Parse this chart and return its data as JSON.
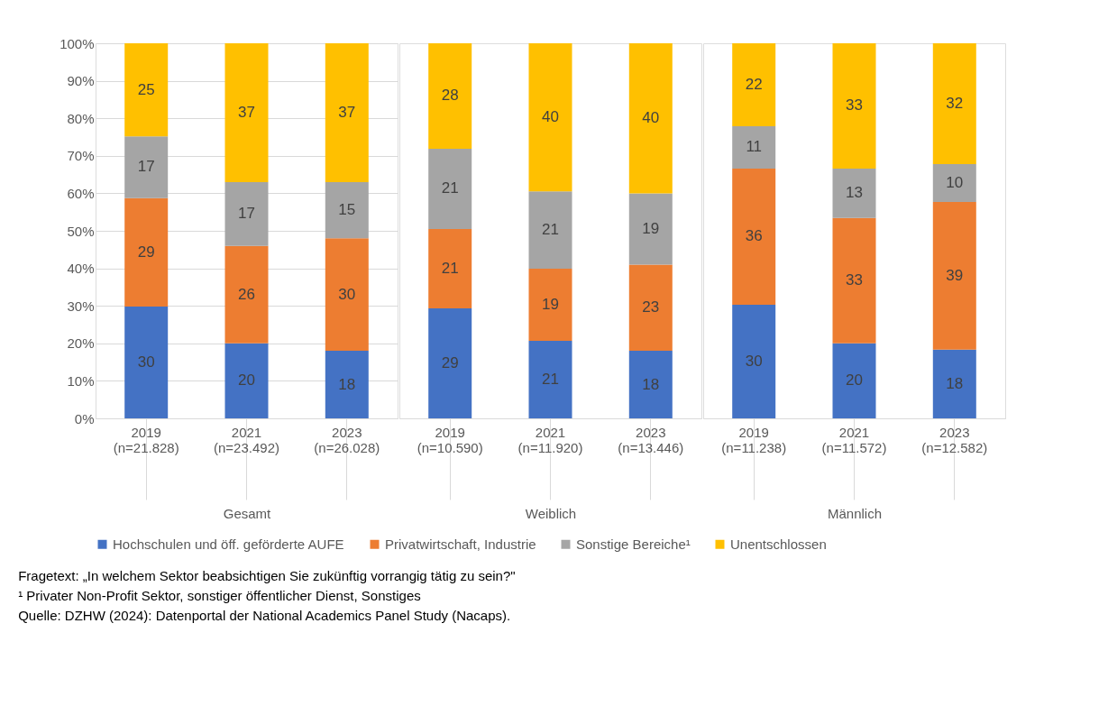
{
  "chart_data": [
    {
      "type": "bar",
      "stacked": true,
      "xlabel": "Gesamt",
      "categories": [
        "2019 (n=21.828)",
        "2021 (n=23.492)",
        "2023 (n=26.028)"
      ],
      "ylim": [
        0,
        100
      ],
      "yticks": [
        {
          "value": 0,
          "label": "0%"
        },
        {
          "value": 10,
          "label": "10%"
        },
        {
          "value": 20,
          "label": "20%"
        },
        {
          "value": 30,
          "label": "30%"
        },
        {
          "value": 40,
          "label": "40%"
        },
        {
          "value": 50,
          "label": "50%"
        },
        {
          "value": 60,
          "label": "60%"
        },
        {
          "value": 70,
          "label": "70%"
        },
        {
          "value": 80,
          "label": "80%"
        },
        {
          "value": 90,
          "label": "90%"
        },
        {
          "value": 100,
          "label": "100%"
        }
      ],
      "grid": "y",
      "legend": "bottom",
      "series": [
        {
          "name": "Hochschulen und öff. geförderte AUFE",
          "color": "#4472c4",
          "values": [
            29.8,
            20,
            18
          ],
          "value_labels": [
            "30",
            "20",
            "18"
          ]
        },
        {
          "name": "Privatwirtschaft, Industrie",
          "color": "#ed7d31",
          "values": [
            28.9,
            26,
            30
          ],
          "value_labels": [
            "29",
            "26",
            "30"
          ]
        },
        {
          "name": "Sonstige Bereiche¹",
          "color": "#a5a5a5",
          "values": [
            16.5,
            17,
            15
          ],
          "value_labels": [
            "17",
            "17",
            "15"
          ]
        },
        {
          "name": "Unentschlossen",
          "color": "#ffc000",
          "values": [
            24.8,
            37,
            37
          ],
          "value_labels": [
            "25",
            "37",
            "37"
          ]
        }
      ],
      "annotations": [
        "Fragetext: „In welchem Sektor beabsichtigen Sie zukünftig vorrangig tätig zu sein?\"",
        "¹ Privater Non-Profit Sektor, sonstiger öffentlicher Dienst, Sonstiges",
        "Quelle: DZHW (2024): Datenportal der National Academics Panel Study (Nacaps)."
      ]
    },
    {
      "type": "bar",
      "stacked": true,
      "xlabel": "Weiblich",
      "categories": [
        "2019 (n=10.590)",
        "2021 (n=11.920)",
        "2023 (n=13.446)"
      ],
      "ylim": [
        0,
        100
      ],
      "tick_labels": "x",
      "grid": "y",
      "series": [
        {
          "name": "Hochschulen und öff. geförderte AUFE",
          "color": "#4472c4",
          "values": [
            29.3,
            20.7,
            18
          ],
          "value_labels": [
            "29",
            "21",
            "18"
          ]
        },
        {
          "name": "Privatwirtschaft, Industrie",
          "color": "#ed7d31",
          "values": [
            21.2,
            19.2,
            23
          ],
          "value_labels": [
            "21",
            "19",
            "23"
          ]
        },
        {
          "name": "Sonstige Bereiche¹",
          "color": "#a5a5a5",
          "values": [
            21.4,
            20.6,
            19
          ],
          "value_labels": [
            "21",
            "21",
            "19"
          ]
        },
        {
          "name": "Unentschlossen",
          "color": "#ffc000",
          "values": [
            28.1,
            39.5,
            40
          ],
          "value_labels": [
            "28",
            "40",
            "40"
          ]
        }
      ]
    },
    {
      "type": "bar",
      "stacked": true,
      "xlabel": "Männlich",
      "categories": [
        "2019 (n=11.238)",
        "2021 (n=11.572)",
        "2023 (n=12.582)"
      ],
      "ylim": [
        0,
        100
      ],
      "tick_labels": "x",
      "grid": "y",
      "series": [
        {
          "name": "Hochschulen und öff. geförderte AUFE",
          "color": "#4472c4",
          "values": [
            30.3,
            20.0,
            18.3
          ],
          "value_labels": [
            "30",
            "20",
            "18"
          ]
        },
        {
          "name": "Privatwirtschaft, Industrie",
          "color": "#ed7d31",
          "values": [
            36.3,
            33.4,
            39.4
          ],
          "value_labels": [
            "36",
            "33",
            "39"
          ]
        },
        {
          "name": "Sonstige Bereiche¹",
          "color": "#a5a5a5",
          "values": [
            11.3,
            13.2,
            10.1
          ],
          "value_labels": [
            "11",
            "13",
            "10"
          ]
        },
        {
          "name": "Unentschlossen",
          "color": "#ffc000",
          "values": [
            22.1,
            33.4,
            32.2
          ],
          "value_labels": [
            "22",
            "33",
            "32"
          ]
        }
      ]
    }
  ]
}
